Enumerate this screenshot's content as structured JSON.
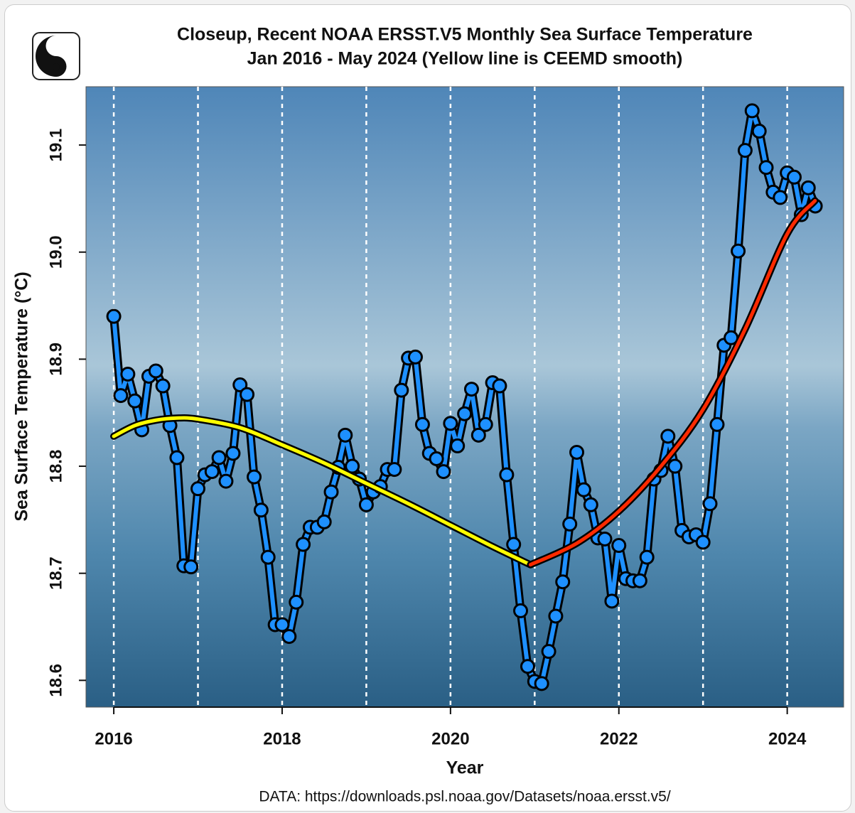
{
  "chart_data": {
    "type": "line",
    "title": "Closeup, Recent NOAA ERSST.V5 Monthly Sea Surface Temperature",
    "subtitle": "Jan 2016 - May 2024 (Yellow line is CEEMD smooth)",
    "x_label": "Year",
    "y_label": "Sea Surface Temperature (°C)",
    "source": "DATA: https://downloads.psl.noaa.gov/Datasets/noaa.ersst.v5/",
    "xlim": [
      2015.67,
      2024.67
    ],
    "ylim": [
      18.575,
      19.1545
    ],
    "xticks": [
      2016,
      2018,
      2020,
      2022,
      2024
    ],
    "x_gridlines": [
      2016,
      2017,
      2018,
      2019,
      2020,
      2021,
      2022,
      2023,
      2024
    ],
    "yticks": [
      18.6,
      18.7,
      18.8,
      18.9,
      {
        "value": 19.0,
        "label": "19.0"
      },
      19.1
    ],
    "series": [
      {
        "color": "#1e90ff",
        "markers": true,
        "x": [
          2016,
          2016.083,
          2016.167,
          2016.25,
          2016.333,
          2016.417,
          2016.5,
          2016.583,
          2016.667,
          2016.75,
          2016.833,
          2016.917,
          2017,
          2017.083,
          2017.167,
          2017.25,
          2017.333,
          2017.417,
          2017.5,
          2017.583,
          2017.667,
          2017.75,
          2017.833,
          2017.917,
          2018,
          2018.083,
          2018.167,
          2018.25,
          2018.333,
          2018.417,
          2018.5,
          2018.583,
          2018.667,
          2018.75,
          2018.833,
          2018.917,
          2019,
          2019.083,
          2019.167,
          2019.25,
          2019.333,
          2019.417,
          2019.5,
          2019.583,
          2019.667,
          2019.75,
          2019.833,
          2019.917,
          2020,
          2020.083,
          2020.167,
          2020.25,
          2020.333,
          2020.417,
          2020.5,
          2020.583,
          2020.667,
          2020.75,
          2020.833,
          2020.917,
          2021,
          2021.083,
          2021.167,
          2021.25,
          2021.333,
          2021.417,
          2021.5,
          2021.583,
          2021.667,
          2021.75,
          2021.833,
          2021.917,
          2022,
          2022.083,
          2022.167,
          2022.25,
          2022.333,
          2022.417,
          2022.5,
          2022.583,
          2022.667,
          2022.75,
          2022.833,
          2022.917,
          2023,
          2023.083,
          2023.167,
          2023.25,
          2023.333,
          2023.417,
          2023.5,
          2023.583,
          2023.667,
          2023.75,
          2023.833,
          2023.917,
          2024,
          2024.083,
          2024.167,
          2024.25,
          2024.333
        ],
        "values": [
          18.94,
          18.866,
          18.886,
          18.861,
          18.834,
          18.884,
          18.889,
          18.875,
          18.838,
          18.808,
          18.707,
          18.706,
          18.779,
          18.792,
          18.795,
          18.808,
          18.786,
          18.812,
          18.876,
          18.867,
          18.79,
          18.759,
          18.715,
          18.652,
          18.652,
          18.641,
          18.673,
          18.727,
          18.743,
          18.743,
          18.748,
          18.776,
          18.799,
          18.829,
          18.8,
          18.788,
          18.764,
          18.776,
          18.781,
          18.797,
          18.797,
          18.871,
          18.901,
          18.902,
          18.839,
          18.812,
          18.807,
          18.795,
          18.84,
          18.819,
          18.849,
          18.872,
          18.829,
          18.839,
          18.878,
          18.875,
          18.792,
          18.727,
          18.665,
          18.613,
          18.599,
          18.597,
          18.627,
          18.66,
          18.692,
          18.746,
          18.813,
          18.778,
          18.764,
          18.733,
          18.732,
          18.674,
          18.726,
          18.695,
          18.693,
          18.693,
          18.715,
          18.788,
          18.796,
          18.828,
          18.8,
          18.74,
          18.734,
          18.736,
          18.729,
          18.765,
          18.839,
          18.913,
          18.92,
          19.001,
          19.095,
          19.132,
          19.113,
          19.079,
          19.056,
          19.051,
          19.074,
          19.07,
          19.035,
          19.06,
          19.043
        ]
      },
      {
        "color": "#ffff00",
        "markers": false,
        "x": [
          2016,
          2016.25,
          2016.5,
          2016.75,
          2017,
          2017.5,
          2018,
          2018.5,
          2019,
          2019.5,
          2020,
          2020.5,
          2020.95
        ],
        "values": [
          18.828,
          18.838,
          18.843,
          18.845,
          18.844,
          18.836,
          18.82,
          18.803,
          18.784,
          18.765,
          18.745,
          18.725,
          18.708
        ]
      },
      {
        "color": "#ff2a00",
        "markers": false,
        "x": [
          2020.95,
          2021.5,
          2022,
          2022.5,
          2023,
          2023.5,
          2024,
          2024.33
        ],
        "values": [
          18.708,
          18.728,
          18.758,
          18.8,
          18.853,
          18.928,
          19.017,
          19.048
        ]
      }
    ]
  }
}
